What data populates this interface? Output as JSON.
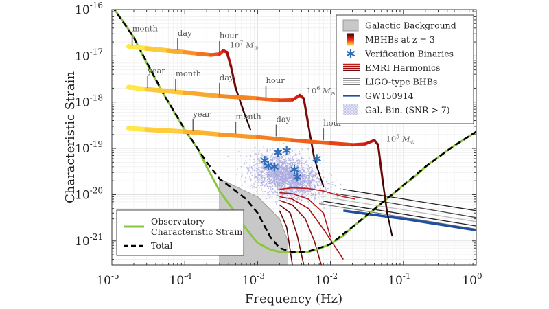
{
  "chart_data": {
    "type": "line",
    "xlabel": "Frequency (Hz)",
    "ylabel": "Characteristic Strain",
    "xscale": "log",
    "yscale": "log",
    "xlim": [
      1e-05,
      1
    ],
    "ylim": [
      3e-22,
      1e-16
    ],
    "xticks": [
      {
        "base": "10",
        "exp": "-5",
        "value": 1e-05
      },
      {
        "base": "10",
        "exp": "-4",
        "value": 0.0001
      },
      {
        "base": "10",
        "exp": "-3",
        "value": 0.001
      },
      {
        "base": "10",
        "exp": "-2",
        "value": 0.01
      },
      {
        "base": "10",
        "exp": "-1",
        "value": 0.1
      },
      {
        "base": "10",
        "exp": "0",
        "value": 1
      }
    ],
    "yticks": [
      {
        "base": "10",
        "exp": "-21",
        "value": 1e-21
      },
      {
        "base": "10",
        "exp": "-20",
        "value": 1e-20
      },
      {
        "base": "10",
        "exp": "-19",
        "value": 1e-19
      },
      {
        "base": "10",
        "exp": "-18",
        "value": 1e-18
      },
      {
        "base": "10",
        "exp": "-17",
        "value": 1e-17
      },
      {
        "base": "10",
        "exp": "-16",
        "value": 1e-16
      }
    ],
    "grid": true,
    "legend_placement": "top-right",
    "legend": [
      {
        "label": "Galactic Background",
        "symbol": "gray-box"
      },
      {
        "label": "MBHBs at z = 3",
        "symbol": "heat-gradient"
      },
      {
        "label": "Verification Binaries",
        "symbol": "blue-asterisk"
      },
      {
        "label": "EMRI Harmonics",
        "symbol": "red-lines"
      },
      {
        "label": "LIGO-type BHBs",
        "symbol": "gray-lines"
      },
      {
        "label": "GW150914",
        "symbol": "blue-line"
      },
      {
        "label": "Gal. Bin. (SNR > 7)",
        "symbol": "lavender-dots"
      }
    ],
    "legend2": [
      {
        "label_lines": [
          "Observatory",
          "Characteristic Strain"
        ],
        "symbol": "green-line"
      },
      {
        "label_lines": [
          "Total"
        ],
        "symbol": "black-dashed-line"
      }
    ],
    "series": {
      "observatory": {
        "name": "Observatory Characteristic Strain",
        "color": "#8cc63f",
        "x": [
          1e-05,
          1.5e-05,
          2e-05,
          3e-05,
          5e-05,
          7e-05,
          0.0001,
          0.00015,
          0.0002,
          0.0003,
          0.0005,
          0.0007,
          0.001,
          0.0015,
          0.002,
          0.003,
          0.005,
          0.007,
          0.01,
          0.015,
          0.02,
          0.03,
          0.05,
          0.07,
          0.1,
          0.15,
          0.2,
          0.3,
          0.5,
          0.7,
          1
        ],
        "y": [
          1.2e-16,
          5e-17,
          2.5e-17,
          7e-18,
          1.6e-18,
          6.5e-19,
          2.5e-19,
          1e-19,
          4e-20,
          1.2e-20,
          4e-21,
          1.8e-21,
          9e-22,
          6.5e-22,
          5.8e-22,
          5.6e-22,
          5.8e-22,
          6.8e-22,
          8.5e-22,
          1.3e-21,
          2e-21,
          3.3e-21,
          6.5e-21,
          1e-20,
          1.6e-20,
          2.6e-20,
          4e-20,
          6.5e-20,
          1.15e-19,
          1.6e-19,
          2.3e-19
        ]
      },
      "total": {
        "name": "Total",
        "color": "#000000",
        "x": [
          1e-05,
          2e-05,
          5e-05,
          0.0001,
          0.0002,
          0.0003,
          0.0005,
          0.0007,
          0.001,
          0.0015,
          0.002,
          0.003,
          0.005,
          0.01,
          0.02,
          0.05,
          0.1,
          0.2,
          0.5,
          1
        ],
        "y": [
          1.2e-16,
          2.5e-17,
          1.6e-18,
          2.6e-19,
          5e-20,
          2.2e-20,
          1.2e-20,
          8e-21,
          4e-21,
          1.2e-21,
          7e-22,
          5.7e-22,
          5.9e-22,
          8.5e-22,
          2e-21,
          6.5e-21,
          1.6e-20,
          4e-20,
          1.15e-19,
          2.3e-19
        ]
      },
      "galactic_background": {
        "name": "Galactic Background",
        "color": "#c8c8c8",
        "x": [
          0.0003,
          0.0003,
          0.0005,
          0.001,
          0.002,
          0.0026,
          0.0026
        ],
        "y": [
          3e-22,
          2.2e-20,
          1.5e-20,
          9e-21,
          3e-21,
          1e-21,
          3e-22
        ]
      },
      "mbhbs": [
        {
          "label": "10^7",
          "x": [
            1.7e-05,
            3e-05,
            6e-05,
            0.0001,
            0.00015,
            0.00023,
            0.0003,
            0.00034,
            0.00038,
            0.00043,
            0.0005,
            0.00065,
            0.0008
          ],
          "y": [
            1.6e-17,
            1.45e-17,
            1.3e-17,
            1.2e-17,
            1.12e-17,
            1.05e-17,
            1.1e-17,
            1.3e-17,
            1.2e-17,
            6e-18,
            2e-18,
            6e-19,
            2.5e-19
          ]
        },
        {
          "label": "10^6",
          "x": [
            1.7e-05,
            3e-05,
            0.0001,
            0.0003,
            0.001,
            0.002,
            0.003,
            0.0038,
            0.0043,
            0.005,
            0.006,
            0.008
          ],
          "y": [
            2.1e-18,
            1.9e-18,
            1.6e-18,
            1.35e-18,
            1.2e-18,
            1.1e-18,
            1.12e-18,
            1.4e-18,
            1.2e-18,
            3e-19,
            6e-20,
            1.5e-20
          ]
        },
        {
          "label": "10^5",
          "x": [
            1.7e-05,
            3e-05,
            0.0001,
            0.0003,
            0.001,
            0.003,
            0.01,
            0.02,
            0.03,
            0.04,
            0.045,
            0.052,
            0.06,
            0.07
          ],
          "y": [
            2.7e-19,
            2.55e-19,
            2.3e-19,
            2e-19,
            1.75e-19,
            1.5e-19,
            1.3e-19,
            1.2e-19,
            1.25e-19,
            1.5e-19,
            1.2e-19,
            2e-20,
            4e-21,
            1.3e-21
          ]
        }
      ],
      "mass_labels": [
        {
          "mantissa": "10",
          "exp": "7",
          "unit": "M",
          "sub": "⊙",
          "x": 0.00038,
          "y": 1.4e-17
        },
        {
          "mantissa": "10",
          "exp": "6",
          "unit": "M",
          "sub": "⊙",
          "x": 0.0043,
          "y": 1.45e-18
        },
        {
          "mantissa": "10",
          "exp": "5",
          "unit": "M",
          "sub": "⊙",
          "x": 0.053,
          "y": 1.3e-19
        }
      ],
      "time_markers": [
        {
          "label": "month",
          "x": 1.9e-05,
          "y": 1.55e-17
        },
        {
          "label": "day",
          "x": 8e-05,
          "y": 1.25e-17
        },
        {
          "label": "hour",
          "x": 0.0003,
          "y": 1.1e-17
        },
        {
          "label": "year",
          "x": 3.1e-05,
          "y": 1.9e-18
        },
        {
          "label": "month",
          "x": 7.5e-05,
          "y": 1.65e-18
        },
        {
          "label": "day",
          "x": 0.0003,
          "y": 1.35e-18
        },
        {
          "label": "hour",
          "x": 0.0013,
          "y": 1.18e-18
        },
        {
          "label": "year",
          "x": 0.00013,
          "y": 2.2e-19
        },
        {
          "label": "month",
          "x": 0.0005,
          "y": 1.95e-19
        },
        {
          "label": "day",
          "x": 0.0018,
          "y": 1.7e-19
        },
        {
          "label": "hour",
          "x": 0.008,
          "y": 1.4e-19
        }
      ],
      "verification_binaries": {
        "x": [
          0.00125,
          0.0014,
          0.0017,
          0.0019,
          0.0025,
          0.0032,
          0.0035,
          0.0065
        ],
        "y": [
          5.5e-20,
          4.2e-20,
          4e-20,
          8.2e-20,
          9e-20,
          3.5e-20,
          2.4e-20,
          6e-20
        ]
      },
      "emri": [
        {
          "x": [
            0.002,
            0.003,
            0.005,
            0.008,
            0.015,
            0.022
          ],
          "y": [
            1.3e-20,
            1.4e-20,
            1.35e-20,
            1.2e-20,
            9e-21,
            8e-21
          ]
        },
        {
          "x": [
            0.002,
            0.003,
            0.005,
            0.008,
            0.01
          ],
          "y": [
            1.1e-20,
            1.05e-20,
            8e-21,
            4e-21,
            1.2e-21
          ]
        },
        {
          "x": [
            0.002,
            0.003,
            0.005,
            0.008,
            0.015
          ],
          "y": [
            9e-21,
            8e-21,
            5e-21,
            1.8e-21,
            4e-22
          ]
        },
        {
          "x": [
            0.002,
            0.003,
            0.0045,
            0.006,
            0.0075
          ],
          "y": [
            7.5e-21,
            6e-21,
            3e-21,
            1e-21,
            3e-22
          ]
        },
        {
          "x": [
            0.002,
            0.0028,
            0.0035,
            0.0043
          ],
          "y": [
            6e-21,
            4e-21,
            1.3e-21,
            3e-22
          ]
        },
        {
          "x": [
            0.002,
            0.0025,
            0.003
          ],
          "y": [
            4.5e-21,
            2e-21,
            3e-22
          ]
        }
      ],
      "ligo_bhbs": [
        {
          "color": "#222222",
          "x": [
            0.015,
            1
          ],
          "y": [
            1.3e-20,
            4.5e-21
          ]
        },
        {
          "color": "#444444",
          "x": [
            0.012,
            1
          ],
          "y": [
            1.05e-20,
            3.2e-21
          ]
        },
        {
          "color": "#bbbbbb",
          "x": [
            0.01,
            1
          ],
          "y": [
            8.5e-21,
            2.6e-21
          ]
        },
        {
          "color": "#222222",
          "x": [
            0.008,
            1
          ],
          "y": [
            7.2e-21,
            2.1e-21
          ]
        },
        {
          "color": "#777777",
          "x": [
            0.007,
            1
          ],
          "y": [
            6.4e-21,
            1.8e-21
          ]
        }
      ],
      "gw150914": {
        "name": "GW150914",
        "color": "#1f4fa0",
        "x": [
          0.015,
          0.1,
          1
        ],
        "y": [
          4.5e-21,
          3e-21,
          1.7e-21
        ]
      },
      "galactic_binaries": {
        "name": "Gal. Bin. (SNR > 7)",
        "color": "#a9a9e0",
        "center_x": 0.0025,
        "center_y": 2.5e-20,
        "spread_x_dex": 0.42,
        "spread_y_dex": 0.38
      }
    }
  }
}
